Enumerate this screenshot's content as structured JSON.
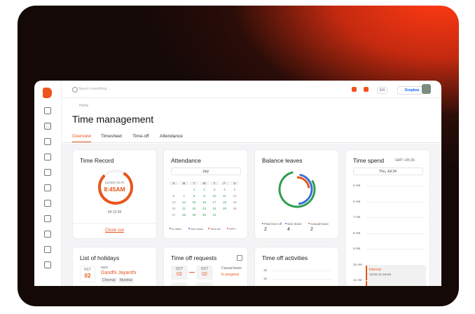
{
  "search_placeholder": "Search something...",
  "language": "EN",
  "company": "Dropbox",
  "breadcrumb": "Home",
  "title": "Time management",
  "tabs": [
    "Overview",
    "Timesheet",
    "Time-off",
    "Attendance"
  ],
  "time_record": {
    "title": "Time Record",
    "label": "CLOCK IN AT",
    "time": "8:45AM",
    "elapsed": "04:12:36",
    "action": "Clock out"
  },
  "attendance": {
    "title": "Attendance",
    "month": "July",
    "weekdays": [
      "S",
      "M",
      "T",
      "W",
      "T",
      "F",
      "S"
    ],
    "days": [
      1,
      2,
      3,
      4,
      5,
      6,
      7,
      8,
      9,
      10,
      11,
      12,
      13,
      14,
      15,
      16,
      17,
      18,
      19,
      20,
      21,
      22,
      23,
      24,
      25,
      26,
      27,
      28,
      29,
      30,
      31
    ],
    "legend": [
      "In office",
      "Sick leave",
      "Time-off",
      "WFH"
    ]
  },
  "balance_leaves": {
    "title": "Balance leaves",
    "items": [
      {
        "name": "Paid time-off",
        "count": 2
      },
      {
        "name": "Sick leave",
        "count": 4
      },
      {
        "name": "Casual leave",
        "count": 2
      }
    ]
  },
  "time_spend": {
    "title": "Time spend",
    "timezone": "GMT +05:30",
    "date": "Thu, Jul 24",
    "hours": [
      "5 AM",
      "6 AM",
      "7 AM",
      "8 AM",
      "9 AM",
      "10 AM",
      "11 AM"
    ],
    "event": {
      "name": "Internal",
      "time": "10AM-11:45AM"
    }
  },
  "holidays": {
    "title": "List of holidays",
    "month": "OCT",
    "day": "02",
    "weekday": "WED",
    "name": "Gandhi Jayanthi",
    "places": [
      "Chennai",
      "Mumbai"
    ]
  },
  "time_off_requests": {
    "title": "Time off requests",
    "from_month": "OCT",
    "from_day": "02",
    "to_month": "OCT",
    "to_day": "02",
    "type": "Casual leave",
    "status": "In-progress"
  },
  "time_off_activities": {
    "title": "Time off activities",
    "yticks": [
      15,
      10
    ]
  }
}
